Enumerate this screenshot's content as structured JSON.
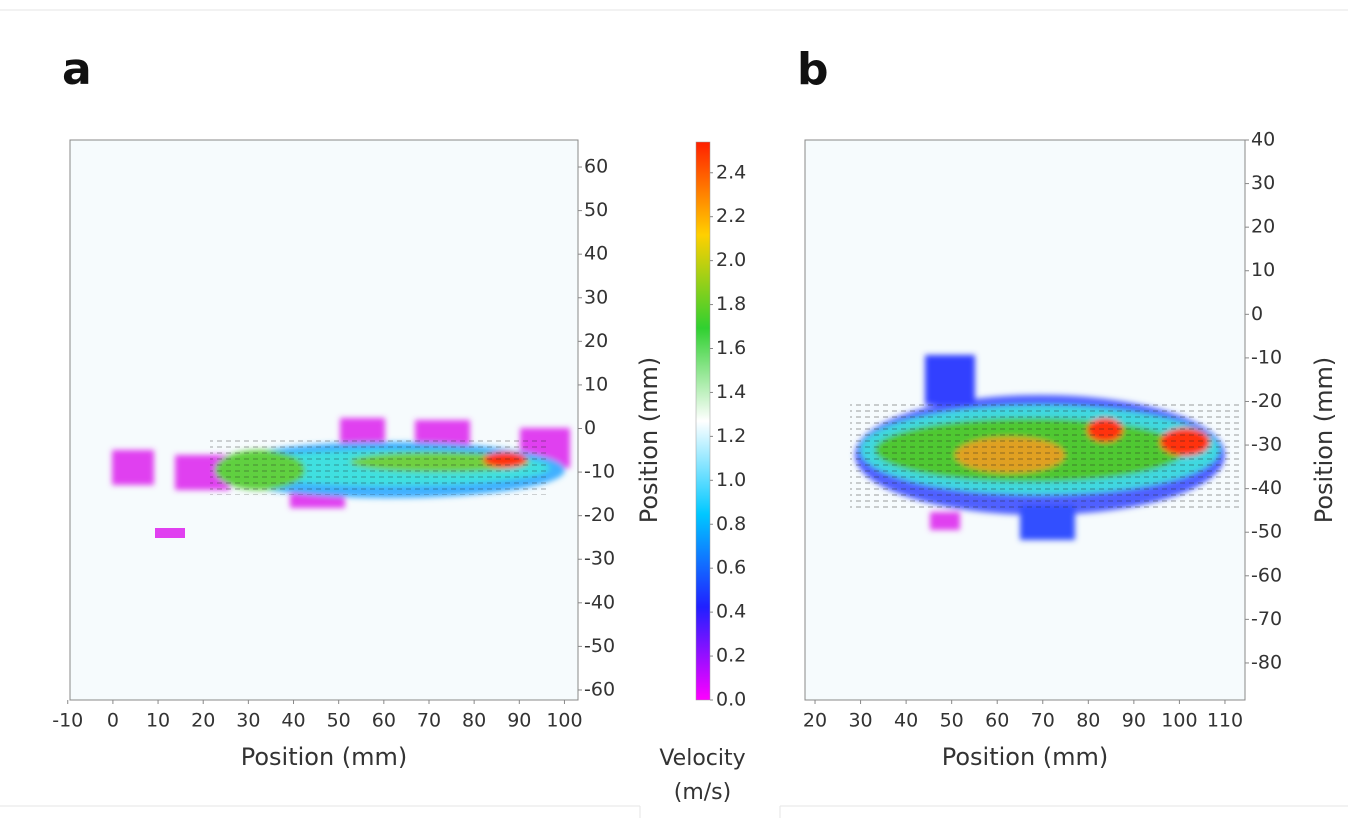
{
  "chart_data": [
    {
      "type": "heatmap",
      "label": "a",
      "xlabel": "Position  (mm)",
      "ylabel": "Position  (mm)",
      "xlim": [
        -9.5,
        103
      ],
      "xticks": [
        -10,
        0,
        10,
        20,
        30,
        40,
        50,
        60,
        70,
        80,
        90,
        100
      ],
      "ylim": [
        -62.3,
        66.2
      ],
      "yticks": [
        -60,
        -50,
        -40,
        -30,
        -20,
        -10,
        0,
        10,
        20,
        30,
        40,
        50,
        60
      ]
    },
    {
      "type": "heatmap",
      "label": "b",
      "xlabel": "Position (mm)",
      "ylabel": "Position  (mm)",
      "xlim": [
        17.8,
        114.4
      ],
      "xticks": [
        20,
        30,
        40,
        50,
        60,
        70,
        80,
        90,
        100,
        110
      ],
      "ylim": [
        -88.5,
        40
      ],
      "yticks": [
        -80,
        -70,
        -60,
        -50,
        -40,
        -30,
        -20,
        -10,
        0,
        10,
        20,
        30,
        40
      ]
    },
    {
      "type": "colorbar",
      "label": "Velocity (m/s)",
      "ylim": [
        0,
        2.54
      ],
      "yticks": [
        {
          "value": 0,
          "label": "0.0"
        },
        0.2,
        0.4,
        0.6,
        0.8,
        {
          "value": 1,
          "label": "1.0"
        },
        1.2,
        1.4,
        1.6,
        1.8,
        {
          "value": 2,
          "label": "2.0"
        },
        2.2,
        2.4
      ],
      "colormap": [
        "#ff00ff",
        "#2020ff",
        "#00c8ff",
        "#ffffff",
        "#30d030",
        "#ffd000",
        "#ff2000"
      ]
    }
  ]
}
